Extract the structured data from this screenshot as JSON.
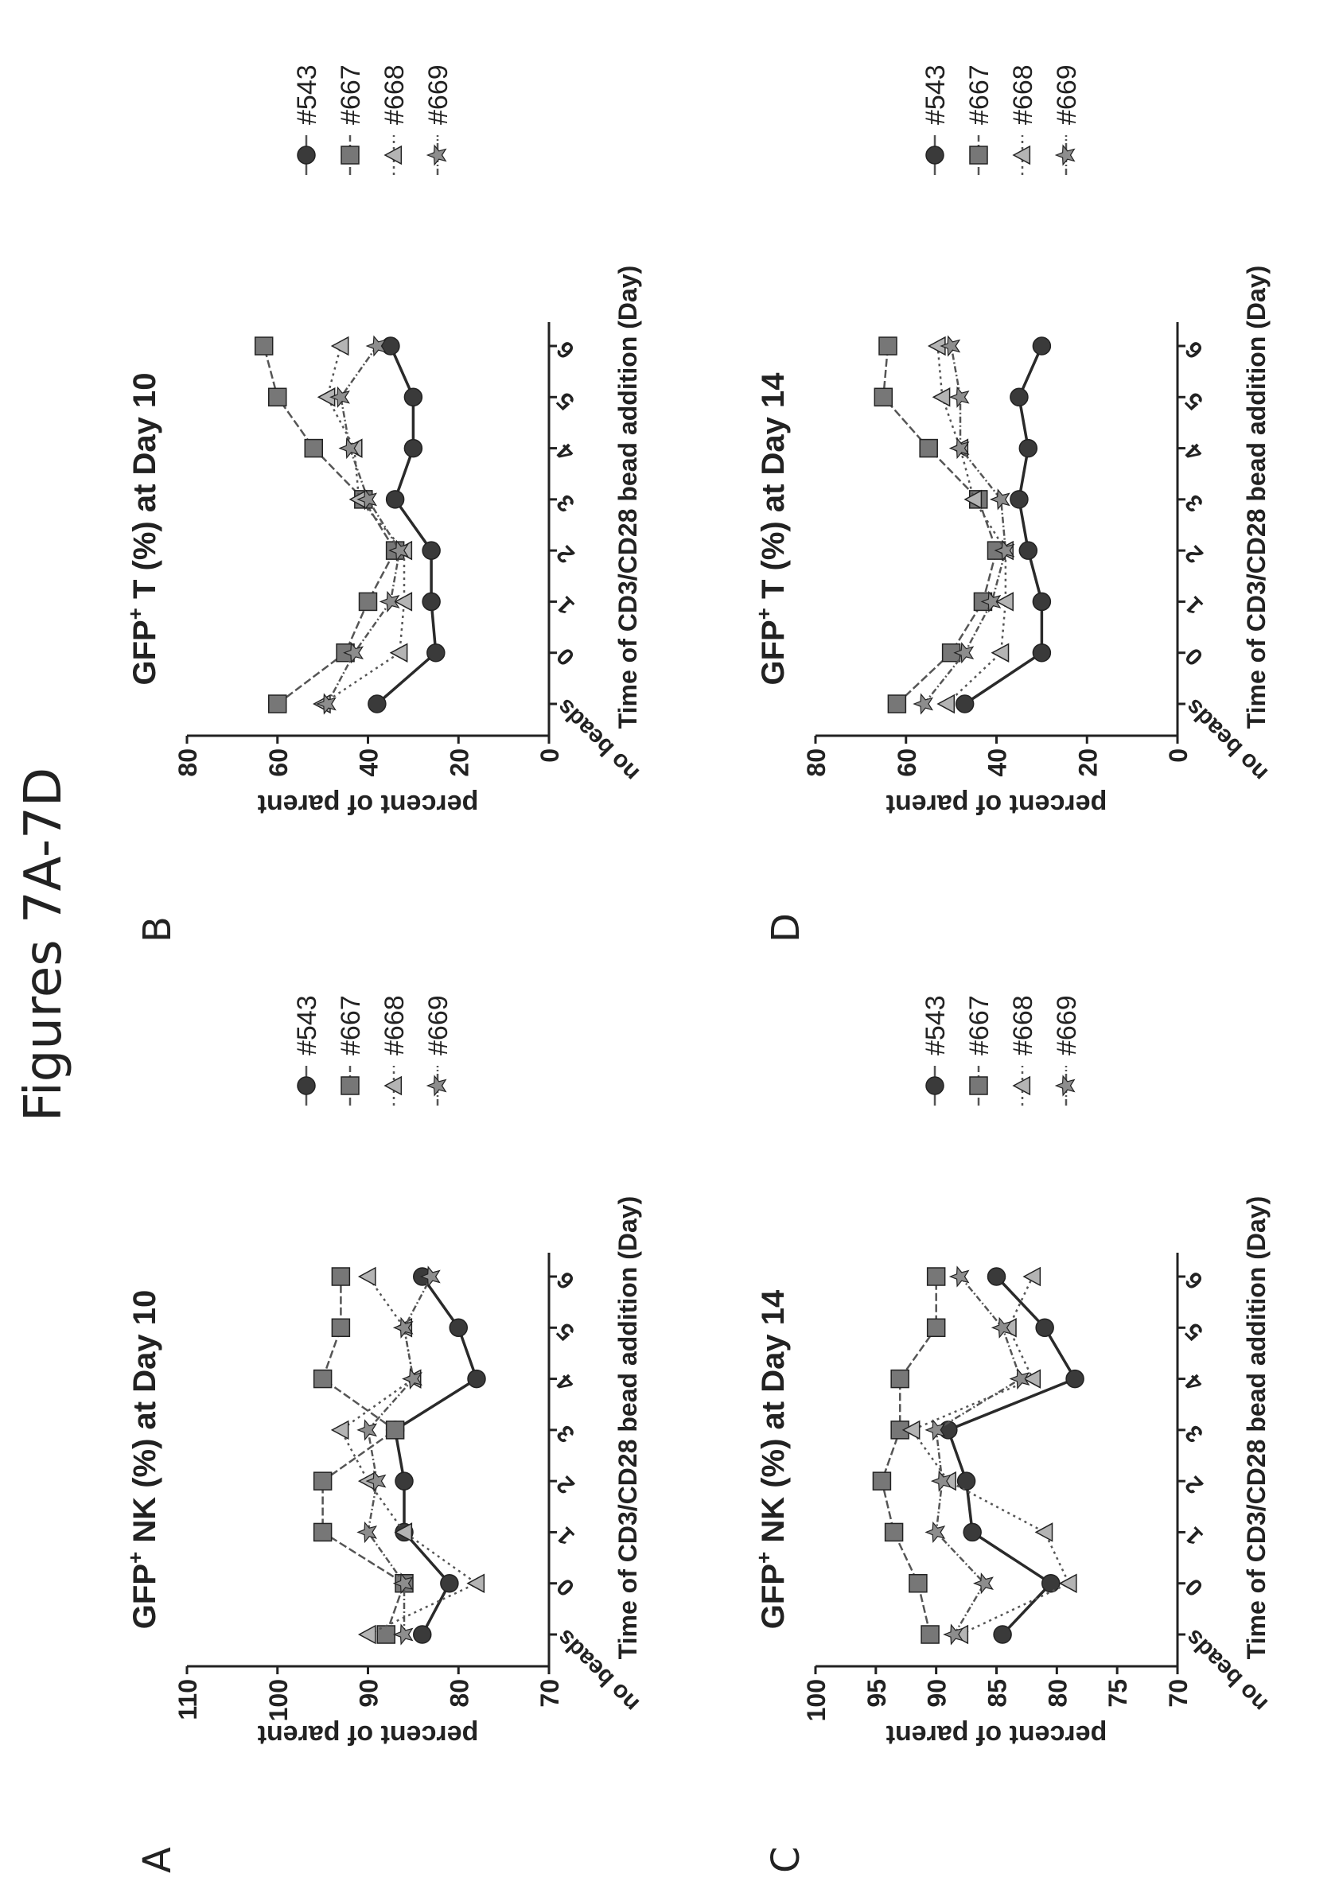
{
  "figure_title": "Figures 7A-7D",
  "colors": {
    "ink": "#222222"
  },
  "chart_data": [
    {
      "letter": "A",
      "type": "line",
      "title": "NK (%) at Day 10",
      "title_prefix": "GFP",
      "title_sup": "+",
      "xlabel": "Time of CD3/CD28 bead addition (Day)",
      "ylabel": "percent of parent",
      "categories": [
        "no beads",
        "0",
        "1",
        "2",
        "3",
        "4",
        "5",
        "6"
      ],
      "ylim": [
        70,
        110
      ],
      "yticks": [
        70,
        80,
        90,
        100,
        110
      ],
      "legend_position": "right",
      "series": [
        {
          "name": "#543",
          "marker": "circle",
          "values": [
            84,
            81,
            86,
            86,
            87,
            78,
            80,
            84
          ]
        },
        {
          "name": "#667",
          "marker": "square",
          "values": [
            88,
            86,
            95,
            95,
            87,
            95,
            93,
            93
          ]
        },
        {
          "name": "#668",
          "marker": "triangle",
          "values": [
            90,
            78,
            86,
            90,
            93,
            85,
            86,
            90
          ]
        },
        {
          "name": "#669",
          "marker": "star",
          "values": [
            86,
            86,
            90,
            89,
            90,
            85,
            86,
            83
          ]
        }
      ]
    },
    {
      "letter": "B",
      "type": "line",
      "title": "T (%) at Day 10",
      "title_prefix": "GFP",
      "title_sup": "+",
      "xlabel": "Time of CD3/CD28 bead addition (Day)",
      "ylabel": "percent of parent",
      "categories": [
        "no beads",
        "0",
        "1",
        "2",
        "3",
        "4",
        "5",
        "6"
      ],
      "ylim": [
        0,
        80
      ],
      "yticks": [
        0,
        20,
        40,
        60,
        80
      ],
      "legend_position": "right",
      "series": [
        {
          "name": "#543",
          "marker": "circle",
          "values": [
            38,
            25,
            26,
            26,
            34,
            30,
            30,
            35
          ]
        },
        {
          "name": "#667",
          "marker": "square",
          "values": [
            60,
            45,
            40,
            34,
            41,
            52,
            60,
            63
          ]
        },
        {
          "name": "#668",
          "marker": "triangle",
          "values": [
            50,
            33,
            32,
            32,
            42,
            43,
            49,
            46
          ]
        },
        {
          "name": "#669",
          "marker": "star",
          "values": [
            49,
            43,
            35,
            33,
            40,
            44,
            46,
            38
          ]
        }
      ]
    },
    {
      "letter": "C",
      "type": "line",
      "title": "NK (%) at Day 14",
      "title_prefix": "GFP",
      "title_sup": "+",
      "xlabel": "Time of CD3/CD28 bead addition (Day)",
      "ylabel": "percent of parent",
      "categories": [
        "no beads",
        "0",
        "1",
        "2",
        "3",
        "4",
        "5",
        "6"
      ],
      "ylim": [
        70,
        100
      ],
      "yticks": [
        70,
        75,
        80,
        85,
        90,
        95,
        100
      ],
      "legend_position": "right",
      "series": [
        {
          "name": "#543",
          "marker": "circle",
          "values": [
            84.5,
            80.5,
            87,
            87.5,
            89,
            78.5,
            81,
            85
          ]
        },
        {
          "name": "#667",
          "marker": "square",
          "values": [
            90.5,
            91.5,
            93.5,
            94.5,
            93,
            93,
            90,
            90
          ]
        },
        {
          "name": "#668",
          "marker": "triangle",
          "values": [
            88,
            79,
            81,
            89,
            92,
            82,
            84,
            82
          ]
        },
        {
          "name": "#669",
          "marker": "star",
          "values": [
            88.5,
            86,
            90,
            89.5,
            90,
            83,
            84.5,
            88
          ]
        }
      ]
    },
    {
      "letter": "D",
      "type": "line",
      "title": "T (%) at Day 14",
      "title_prefix": "GFP",
      "title_sup": "+",
      "xlabel": "Time of CD3/CD28 bead addition (Day)",
      "ylabel": "percent of parent",
      "categories": [
        "no beads",
        "0",
        "1",
        "2",
        "3",
        "4",
        "5",
        "6"
      ],
      "ylim": [
        0,
        80
      ],
      "yticks": [
        0,
        20,
        40,
        60,
        80
      ],
      "legend_position": "right",
      "series": [
        {
          "name": "#543",
          "marker": "circle",
          "values": [
            47,
            30,
            30,
            33,
            35,
            33,
            35,
            30
          ]
        },
        {
          "name": "#667",
          "marker": "square",
          "values": [
            62,
            50,
            43,
            40,
            44,
            55,
            65,
            64
          ]
        },
        {
          "name": "#668",
          "marker": "triangle",
          "values": [
            51,
            39,
            38,
            38,
            45,
            48,
            52,
            53
          ]
        },
        {
          "name": "#669",
          "marker": "star",
          "values": [
            56,
            47,
            41,
            38,
            39,
            48,
            48,
            50
          ]
        }
      ]
    }
  ]
}
